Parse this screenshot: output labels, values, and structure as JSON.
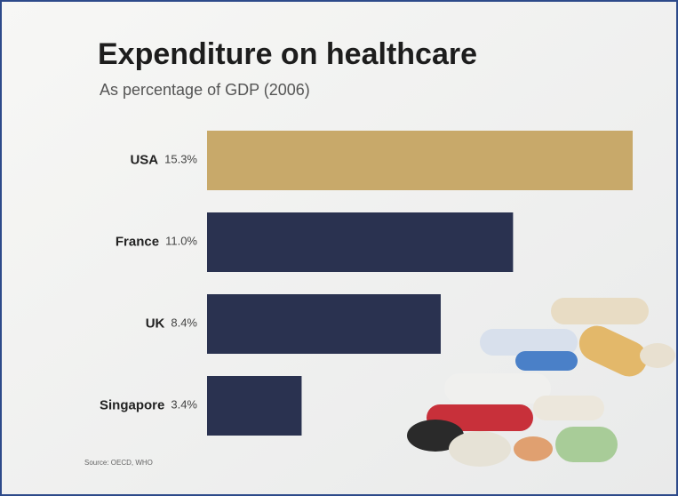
{
  "chart_data": {
    "type": "barh",
    "title": "Expenditure on healthcare",
    "subtitle": "As percentage of GDP (2006)",
    "categories": [
      "USA",
      "France",
      "UK",
      "Singapore"
    ],
    "values": [
      15.3,
      11.0,
      8.4,
      3.4
    ],
    "value_labels": [
      "15.3%",
      "11.0%",
      "8.4%",
      "3.4%"
    ],
    "colors": [
      "#c8a96a",
      "#2a3250",
      "#2a3250",
      "#2a3250"
    ],
    "source": "Source: OECD, WHO"
  }
}
